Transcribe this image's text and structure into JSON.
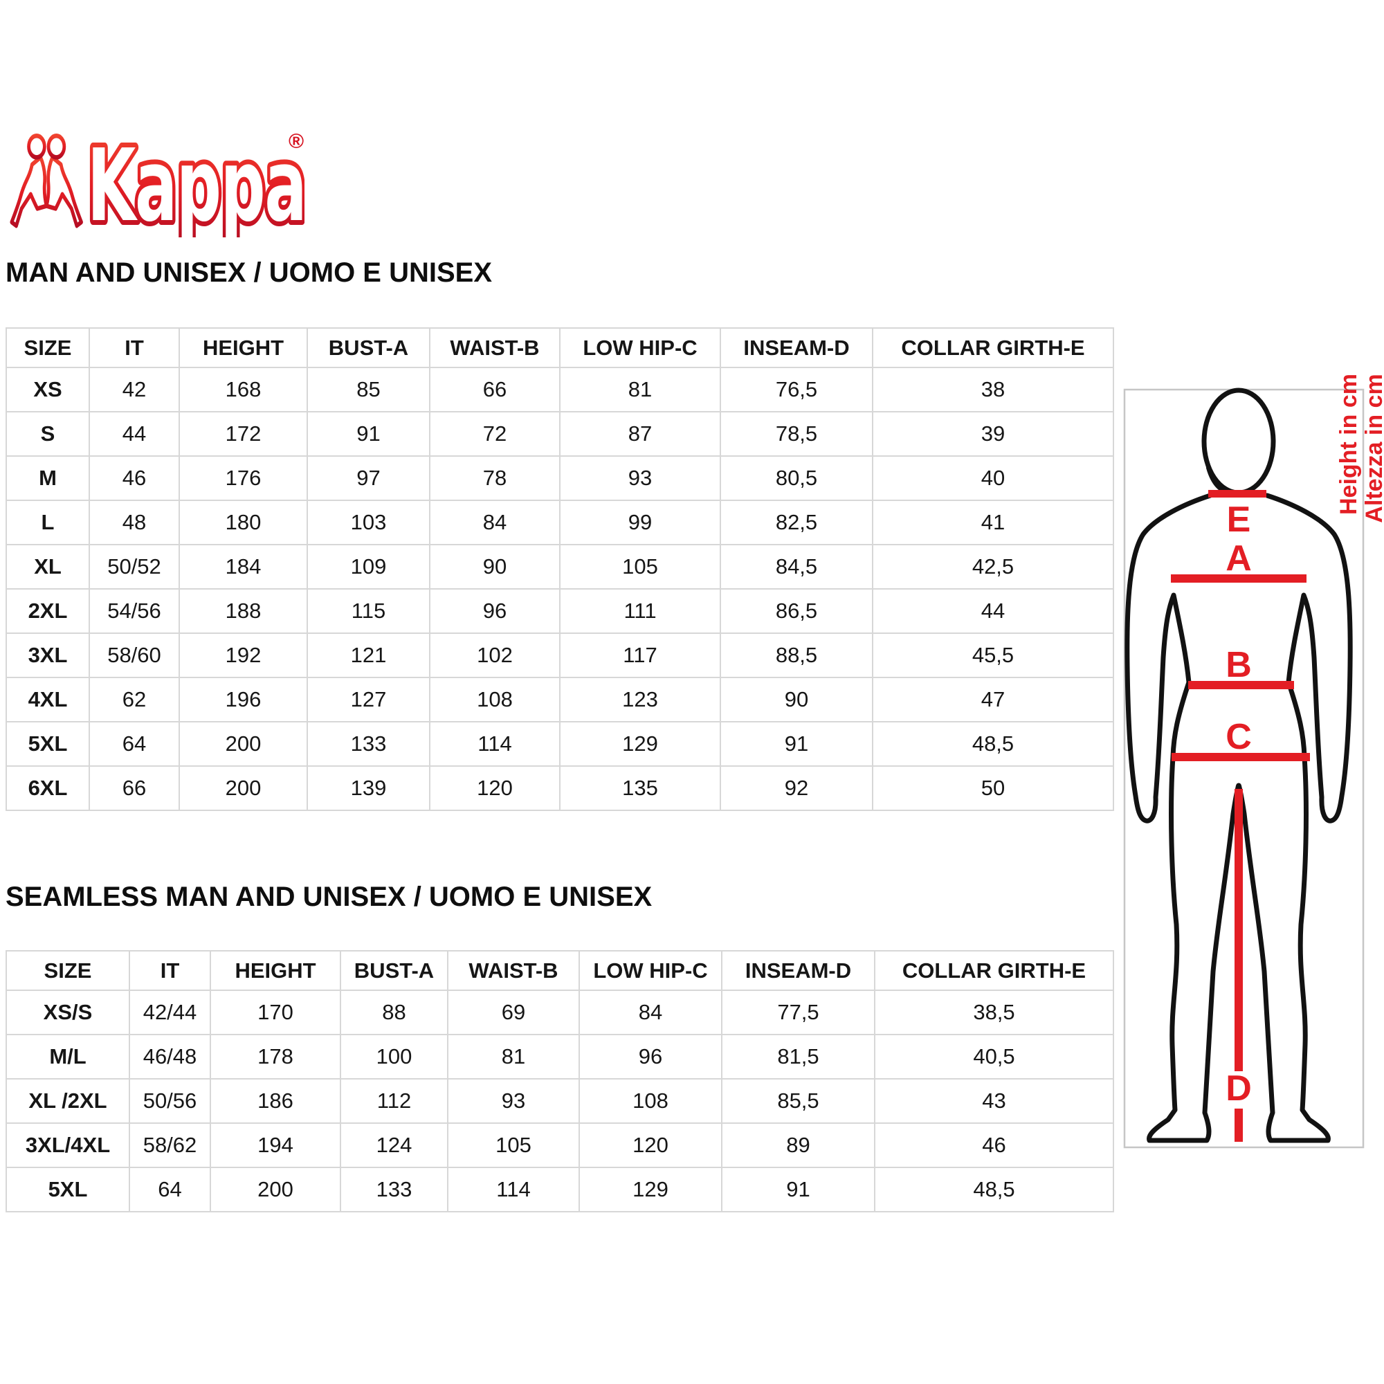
{
  "logo": {
    "brand": "Kappa",
    "registered": "®"
  },
  "notes": {
    "height_en": "Height in cm",
    "height_it": "Altezza in cm"
  },
  "figure_labels": {
    "collar": "E",
    "bust": "A",
    "waist": "B",
    "low_hip": "C",
    "inseam": "D"
  },
  "sections": [
    {
      "title": "MAN AND UNISEX / UOMO E UNISEX",
      "headers": [
        "SIZE",
        "IT",
        "HEIGHT",
        "BUST-A",
        "WAIST-B",
        "LOW HIP-C",
        "INSEAM-D",
        "COLLAR GIRTH-E"
      ],
      "rows": [
        [
          "XS",
          "42",
          "168",
          "85",
          "66",
          "81",
          "76,5",
          "38"
        ],
        [
          "S",
          "44",
          "172",
          "91",
          "72",
          "87",
          "78,5",
          "39"
        ],
        [
          "M",
          "46",
          "176",
          "97",
          "78",
          "93",
          "80,5",
          "40"
        ],
        [
          "L",
          "48",
          "180",
          "103",
          "84",
          "99",
          "82,5",
          "41"
        ],
        [
          "XL",
          "50/52",
          "184",
          "109",
          "90",
          "105",
          "84,5",
          "42,5"
        ],
        [
          "2XL",
          "54/56",
          "188",
          "115",
          "96",
          "111",
          "86,5",
          "44"
        ],
        [
          "3XL",
          "58/60",
          "192",
          "121",
          "102",
          "117",
          "88,5",
          "45,5"
        ],
        [
          "4XL",
          "62",
          "196",
          "127",
          "108",
          "123",
          "90",
          "47"
        ],
        [
          "5XL",
          "64",
          "200",
          "133",
          "114",
          "129",
          "91",
          "48,5"
        ],
        [
          "6XL",
          "66",
          "200",
          "139",
          "120",
          "135",
          "92",
          "50"
        ]
      ]
    },
    {
      "title": "SEAMLESS MAN AND UNISEX / UOMO E UNISEX",
      "headers": [
        "SIZE",
        "IT",
        "HEIGHT",
        "BUST-A",
        "WAIST-B",
        "LOW HIP-C",
        "INSEAM-D",
        "COLLAR GIRTH-E"
      ],
      "rows": [
        [
          "XS/S",
          "42/44",
          "170",
          "88",
          "69",
          "84",
          "77,5",
          "38,5"
        ],
        [
          "M/L",
          "46/48",
          "178",
          "100",
          "81",
          "96",
          "81,5",
          "40,5"
        ],
        [
          "XL /2XL",
          "50/56",
          "186",
          "112",
          "93",
          "108",
          "85,5",
          "43"
        ],
        [
          "3XL/4XL",
          "58/62",
          "194",
          "124",
          "105",
          "120",
          "89",
          "46"
        ],
        [
          "5XL",
          "64",
          "200",
          "133",
          "114",
          "129",
          "91",
          "48,5"
        ]
      ]
    }
  ],
  "colors": {
    "accent_red": "#e31e24",
    "logo_red": "#d6111f",
    "table_border": "#d7d7d7",
    "box_gray": "#c6c6c6"
  }
}
